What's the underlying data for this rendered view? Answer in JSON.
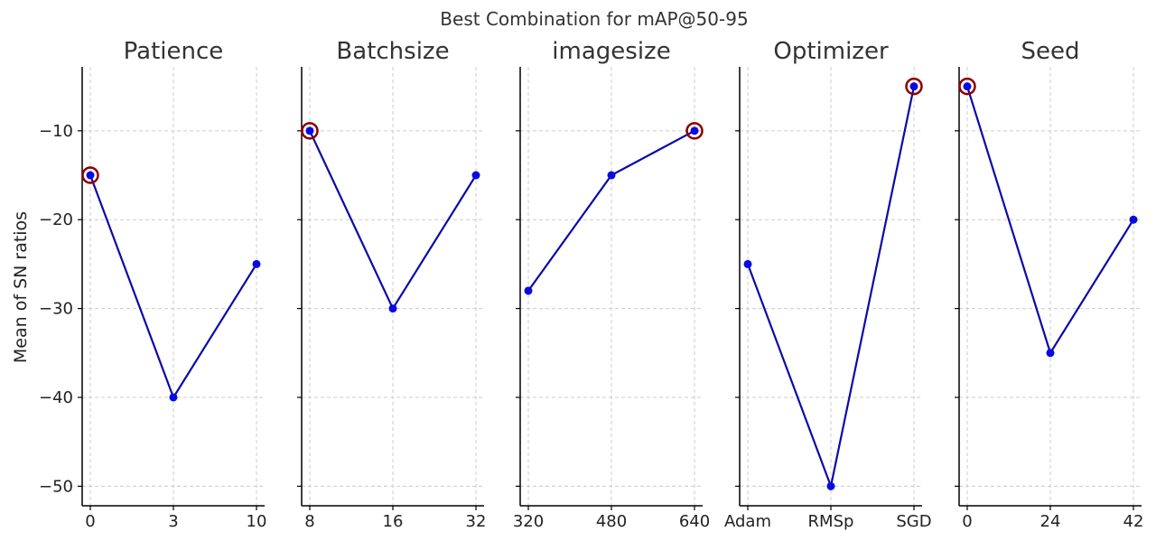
{
  "chart_data": {
    "type": "line",
    "title": "Best Combination for mAP@50-95",
    "ylabel": "Mean of SN ratios",
    "ylim": [
      -52.2,
      -2.8
    ],
    "yticks": [
      -10,
      -20,
      -30,
      -40,
      -50
    ],
    "ytick_labels": [
      "−10",
      "−20",
      "−30",
      "−40",
      "−50"
    ],
    "grid": true,
    "colors": {
      "line": "#0a0aa8",
      "marker": "#0a0ae0",
      "best_marker": "#8b0000"
    },
    "panels": [
      {
        "title": "Patience",
        "categories": [
          "0",
          "3",
          "10"
        ],
        "values": [
          -15,
          -40,
          -25
        ],
        "best_index": 0
      },
      {
        "title": "Batchsize",
        "categories": [
          "8",
          "16",
          "32"
        ],
        "values": [
          -10,
          -30,
          -15
        ],
        "best_index": 0
      },
      {
        "title": "imagesize",
        "categories": [
          "320",
          "480",
          "640"
        ],
        "values": [
          -28,
          -15,
          -10
        ],
        "best_index": 2
      },
      {
        "title": "Optimizer",
        "categories": [
          "Adam",
          "RMSp",
          "SGD"
        ],
        "values": [
          -25,
          -50,
          -5
        ],
        "best_index": 2
      },
      {
        "title": "Seed",
        "categories": [
          "0",
          "24",
          "42"
        ],
        "values": [
          -5,
          -35,
          -20
        ],
        "best_index": 0
      }
    ]
  }
}
